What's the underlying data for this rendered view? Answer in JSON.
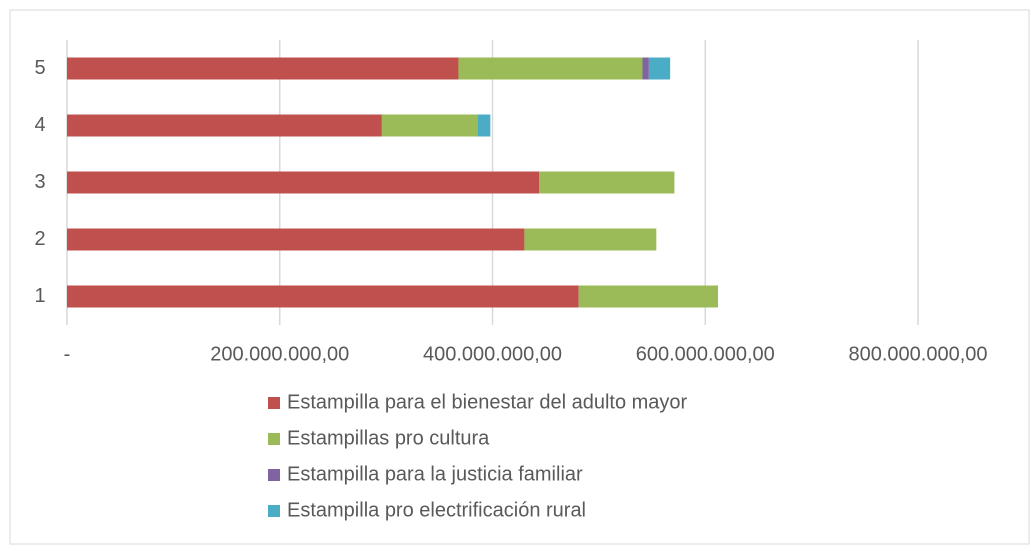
{
  "chart_data": {
    "type": "bar",
    "orientation": "horizontal",
    "stacked": true,
    "categories": [
      "1",
      "2",
      "3",
      "4",
      "5"
    ],
    "series": [
      {
        "name": "Estampilla para el bienestar del adulto mayor",
        "color": "#c0504d",
        "values": [
          481000000,
          430000000,
          444000000,
          296000000,
          368000000
        ]
      },
      {
        "name": "Estampillas pro cultura",
        "color": "#9bbb59",
        "values": [
          131000000,
          124000000,
          127000000,
          90000000,
          173000000
        ]
      },
      {
        "name": "Estampilla para la justicia familiar",
        "color": "#8064a2",
        "values": [
          0,
          0,
          0,
          0,
          6000000
        ]
      },
      {
        "name": "Estampilla pro electrificación rural",
        "color": "#4bacc6",
        "values": [
          0,
          0,
          0,
          12000000,
          20000000
        ]
      }
    ],
    "xlim": [
      0,
      800000000
    ],
    "xticks": [
      {
        "value": 0,
        "label": "-"
      },
      {
        "value": 200000000,
        "label": "200.000.000,00"
      },
      {
        "value": 400000000,
        "label": "400.000.000,00"
      },
      {
        "value": 600000000,
        "label": "600.000.000,00"
      },
      {
        "value": 800000000,
        "label": "800.000.000,00"
      }
    ],
    "grid": true,
    "legend": "bottom"
  }
}
